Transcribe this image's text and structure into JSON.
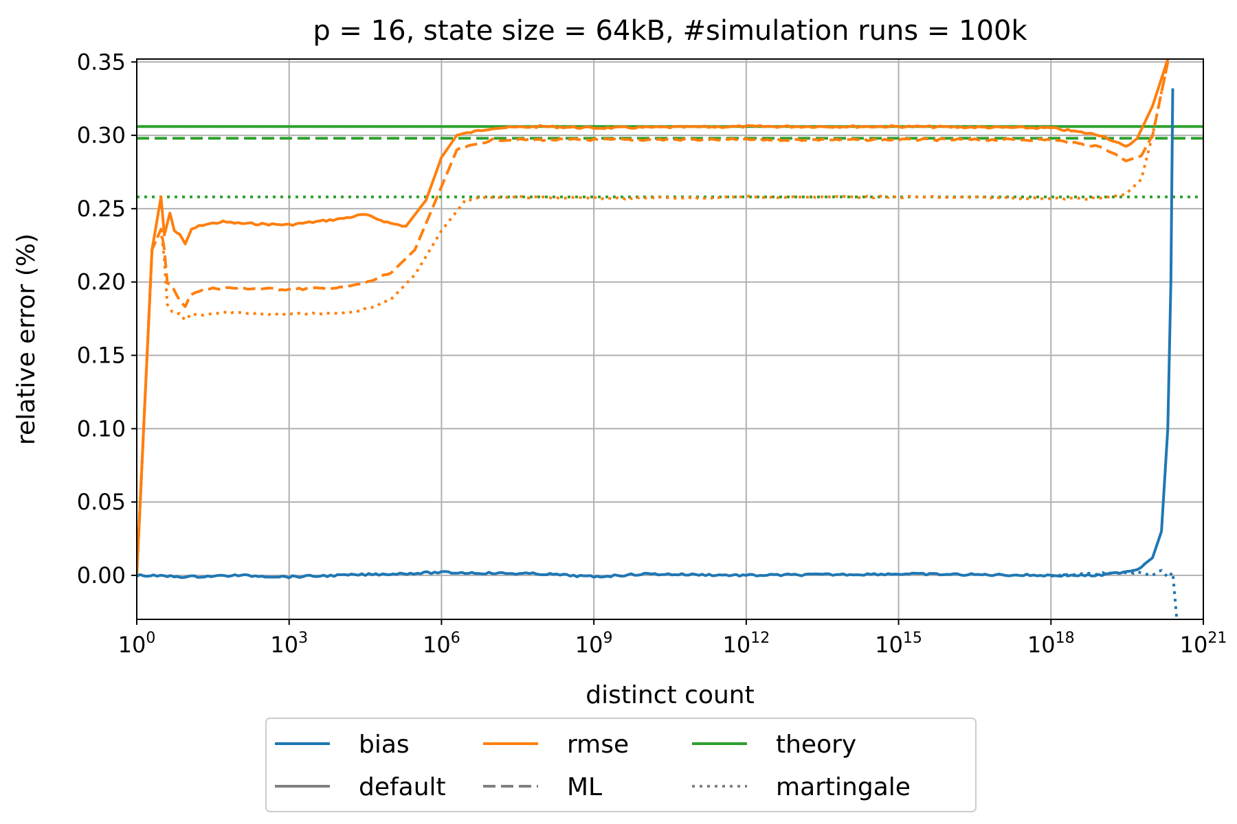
{
  "chart_data": {
    "type": "line",
    "title": "p = 16, state size = 64kB, #simulation runs = 100k",
    "xlabel": "distinct count",
    "ylabel": "relative error (%)",
    "x_scale": "log10",
    "xlim": [
      1,
      1e+21
    ],
    "ylim": [
      -0.03,
      0.352
    ],
    "grid": true,
    "x_ticks": [
      {
        "base": "10",
        "exp": "0"
      },
      {
        "base": "10",
        "exp": "3"
      },
      {
        "base": "10",
        "exp": "6"
      },
      {
        "base": "10",
        "exp": "9"
      },
      {
        "base": "10",
        "exp": "12"
      },
      {
        "base": "10",
        "exp": "15"
      },
      {
        "base": "10",
        "exp": "18"
      },
      {
        "base": "10",
        "exp": "21"
      }
    ],
    "y_ticks": [
      "0.00",
      "0.05",
      "0.10",
      "0.15",
      "0.20",
      "0.25",
      "0.30",
      "0.35"
    ],
    "legend": {
      "placement": "bottom-center, below axes",
      "entries": [
        {
          "label": "bias",
          "color": "#1f77b4",
          "dash": "solid"
        },
        {
          "label": "default",
          "color": "#808080",
          "dash": "solid"
        },
        {
          "label": "rmse",
          "color": "#ff7f0e",
          "dash": "solid"
        },
        {
          "label": "ML",
          "color": "#808080",
          "dash": "dashed"
        },
        {
          "label": "theory",
          "color": "#2ca02c",
          "dash": "solid"
        },
        {
          "label": "martingale",
          "color": "#808080",
          "dash": "dotted"
        }
      ]
    },
    "series": [
      {
        "quantity": "rmse",
        "estimator": "default",
        "color": "#ff7f0e",
        "dash": "solid",
        "points": [
          [
            1,
            0.0
          ],
          [
            2,
            0.222
          ],
          [
            3,
            0.258
          ],
          [
            3.5,
            0.232
          ],
          [
            4.5,
            0.247
          ],
          [
            5.5,
            0.235
          ],
          [
            7,
            0.232
          ],
          [
            9,
            0.226
          ],
          [
            12,
            0.236
          ],
          [
            20,
            0.239
          ],
          [
            50,
            0.241
          ],
          [
            100,
            0.24
          ],
          [
            1000,
            0.239
          ],
          [
            10000,
            0.243
          ],
          [
            30000,
            0.246
          ],
          [
            100000,
            0.24
          ],
          [
            200000,
            0.238
          ],
          [
            500000,
            0.256
          ],
          [
            1000000,
            0.285
          ],
          [
            2000000,
            0.3
          ],
          [
            10000000,
            0.305
          ],
          [
            100000000,
            0.306
          ],
          [
            1000000000.0,
            0.305
          ],
          [
            1000000000000.0,
            0.306
          ],
          [
            1000000000000000.0,
            0.306
          ],
          [
            1e+18,
            0.305
          ],
          [
            1e+19,
            0.3
          ],
          [
            3e+19,
            0.292
          ],
          [
            5e+19,
            0.298
          ],
          [
            1e+20,
            0.32
          ],
          [
            2e+20,
            0.352
          ]
        ]
      },
      {
        "quantity": "rmse",
        "estimator": "ML",
        "color": "#ff7f0e",
        "dash": "dashed",
        "points": [
          [
            1,
            0.0
          ],
          [
            2,
            0.222
          ],
          [
            3,
            0.236
          ],
          [
            3.5,
            0.222
          ],
          [
            4,
            0.2
          ],
          [
            5,
            0.197
          ],
          [
            7,
            0.187
          ],
          [
            9,
            0.183
          ],
          [
            12,
            0.192
          ],
          [
            20,
            0.195
          ],
          [
            50,
            0.196
          ],
          [
            1000,
            0.195
          ],
          [
            10000,
            0.196
          ],
          [
            30000,
            0.199
          ],
          [
            100000,
            0.206
          ],
          [
            300000,
            0.222
          ],
          [
            1000000,
            0.265
          ],
          [
            2000000,
            0.29
          ],
          [
            10000000,
            0.297
          ],
          [
            1000000000.0,
            0.297
          ],
          [
            1000000000000.0,
            0.297
          ],
          [
            1000000000000000.0,
            0.297
          ],
          [
            1e+18,
            0.297
          ],
          [
            1e+19,
            0.292
          ],
          [
            3e+19,
            0.283
          ],
          [
            6e+19,
            0.286
          ],
          [
            1e+20,
            0.3
          ],
          [
            2e+20,
            0.35
          ]
        ]
      },
      {
        "quantity": "rmse",
        "estimator": "martingale",
        "color": "#ff7f0e",
        "dash": "dotted",
        "points": [
          [
            1,
            0.0
          ],
          [
            2,
            0.222
          ],
          [
            3,
            0.236
          ],
          [
            3.5,
            0.215
          ],
          [
            4,
            0.184
          ],
          [
            5,
            0.18
          ],
          [
            7,
            0.178
          ],
          [
            9,
            0.174
          ],
          [
            12,
            0.178
          ],
          [
            20,
            0.177
          ],
          [
            50,
            0.179
          ],
          [
            1000,
            0.178
          ],
          [
            10000,
            0.179
          ],
          [
            30000,
            0.181
          ],
          [
            100000,
            0.188
          ],
          [
            300000,
            0.205
          ],
          [
            1000000,
            0.235
          ],
          [
            3000000,
            0.256
          ],
          [
            10000000,
            0.258
          ],
          [
            1000000000.0,
            0.257
          ],
          [
            1000000000000.0,
            0.258
          ],
          [
            1000000000000000.0,
            0.258
          ],
          [
            1e+18,
            0.257
          ],
          [
            1e+19,
            0.257
          ],
          [
            3e+19,
            0.26
          ],
          [
            6e+19,
            0.27
          ],
          [
            1e+20,
            0.3
          ],
          [
            2e+20,
            0.35
          ]
        ]
      },
      {
        "quantity": "bias",
        "estimator": "default",
        "color": "#1f77b4",
        "dash": "solid",
        "points": [
          [
            1,
            0.0
          ],
          [
            10,
            -0.001
          ],
          [
            100,
            0.0
          ],
          [
            1000,
            -0.001
          ],
          [
            1000000,
            0.002
          ],
          [
            100000000,
            0.001
          ],
          [
            1000000000.0,
            -0.001
          ],
          [
            10000000000.0,
            0.001
          ],
          [
            1000000000000.0,
            0.0
          ],
          [
            1000000000000000.0,
            0.001
          ],
          [
            1e+18,
            0.0
          ],
          [
            1e+19,
            0.0
          ],
          [
            5e+19,
            0.004
          ],
          [
            1e+20,
            0.012
          ],
          [
            1.5e+20,
            0.03
          ],
          [
            2e+20,
            0.1
          ],
          [
            2.3e+20,
            0.2
          ],
          [
            2.5e+20,
            0.332
          ]
        ]
      },
      {
        "quantity": "bias",
        "estimator": "martingale",
        "color": "#1f77b4",
        "dash": "dotted",
        "points": [
          [
            1e+18,
            0.0
          ],
          [
            5e+19,
            0.002
          ],
          [
            1e+20,
            0.0
          ],
          [
            1.5e+20,
            0.003
          ],
          [
            2e+20,
            -0.002
          ],
          [
            2.5e+20,
            0.002
          ],
          [
            3e+20,
            -0.03
          ]
        ]
      },
      {
        "quantity": "theory",
        "estimator": "default",
        "color": "#2ca02c",
        "dash": "solid",
        "points": [
          [
            1,
            0.306
          ],
          [
            1e+21,
            0.306
          ]
        ]
      },
      {
        "quantity": "theory",
        "estimator": "ML",
        "color": "#2ca02c",
        "dash": "dashed",
        "points": [
          [
            1,
            0.298
          ],
          [
            1e+21,
            0.298
          ]
        ]
      },
      {
        "quantity": "theory",
        "estimator": "martingale",
        "color": "#2ca02c",
        "dash": "dotted",
        "points": [
          [
            1,
            0.258
          ],
          [
            1e+21,
            0.258
          ]
        ]
      }
    ]
  }
}
